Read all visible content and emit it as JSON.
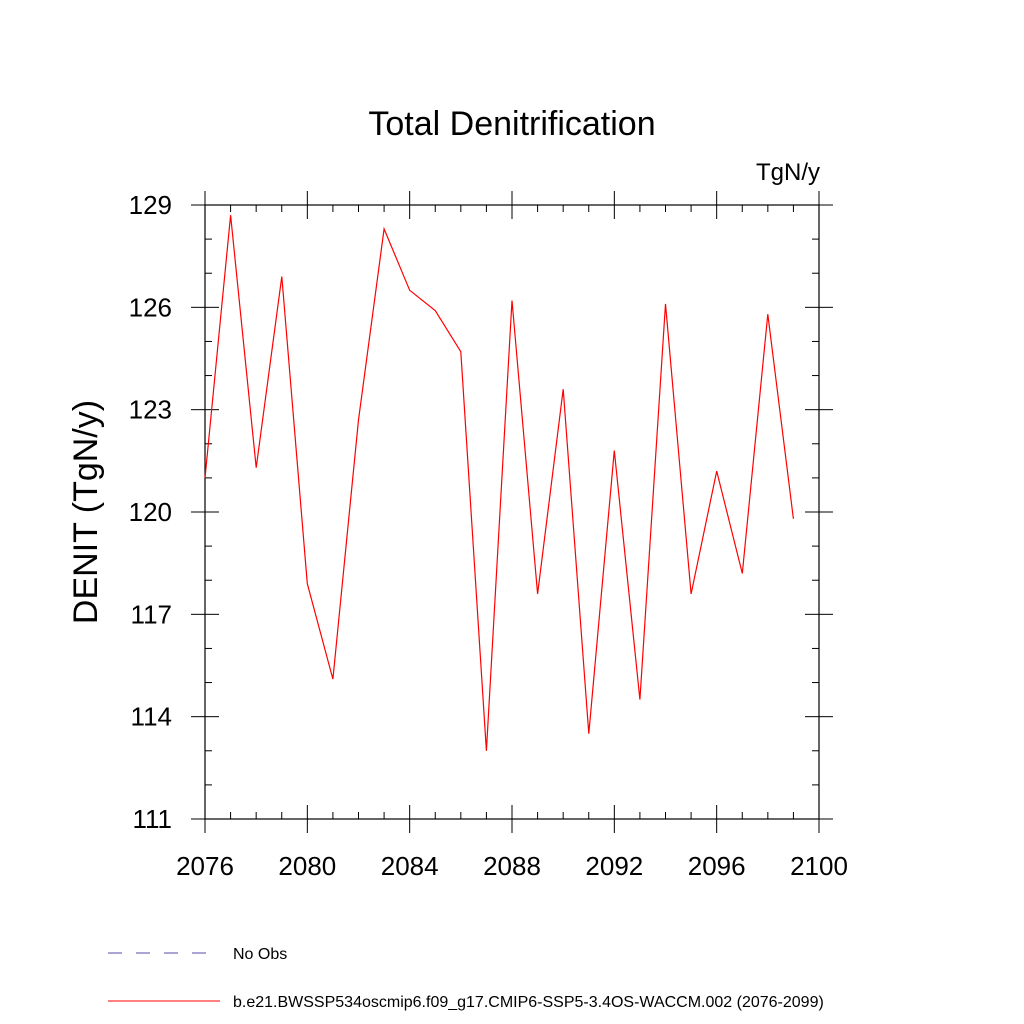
{
  "chart_data": {
    "type": "line",
    "title": "Total Denitrification",
    "units_label": "TgN/y",
    "ylabel": "DENIT  (TgN/y)",
    "xlabel": "",
    "xlim": [
      2076,
      2100
    ],
    "ylim": [
      111,
      129
    ],
    "xticks": [
      2076,
      2080,
      2084,
      2088,
      2092,
      2096,
      2100
    ],
    "yticks": [
      111,
      114,
      117,
      120,
      123,
      126,
      129
    ],
    "grid": false,
    "legend_position": "bottom",
    "series": [
      {
        "name": "b.e21.BWSSP534oscmip6.f09_g17.CMIP6-SSP5-3.4OS-WACCM.002 (2076-2099)",
        "color": "#ff0000",
        "dash": "solid",
        "x": [
          2076,
          2077,
          2078,
          2079,
          2080,
          2081,
          2082,
          2083,
          2084,
          2085,
          2086,
          2087,
          2088,
          2089,
          2090,
          2091,
          2092,
          2093,
          2094,
          2095,
          2096,
          2097,
          2098,
          2099
        ],
        "y": [
          121.0,
          128.7,
          121.3,
          126.9,
          117.9,
          115.1,
          122.7,
          128.3,
          126.5,
          125.9,
          124.7,
          113.0,
          126.2,
          117.6,
          123.6,
          113.5,
          121.8,
          114.5,
          126.1,
          117.6,
          121.2,
          118.2,
          125.8,
          119.8
        ]
      }
    ],
    "legend": [
      {
        "label": "No Obs",
        "color": "#5a4aa8",
        "dash": "dashed"
      },
      {
        "label": "b.e21.BWSSP534oscmip6.f09_g17.CMIP6-SSP5-3.4OS-WACCM.002 (2076-2099)",
        "color": "#ff0000",
        "dash": "solid"
      }
    ]
  }
}
